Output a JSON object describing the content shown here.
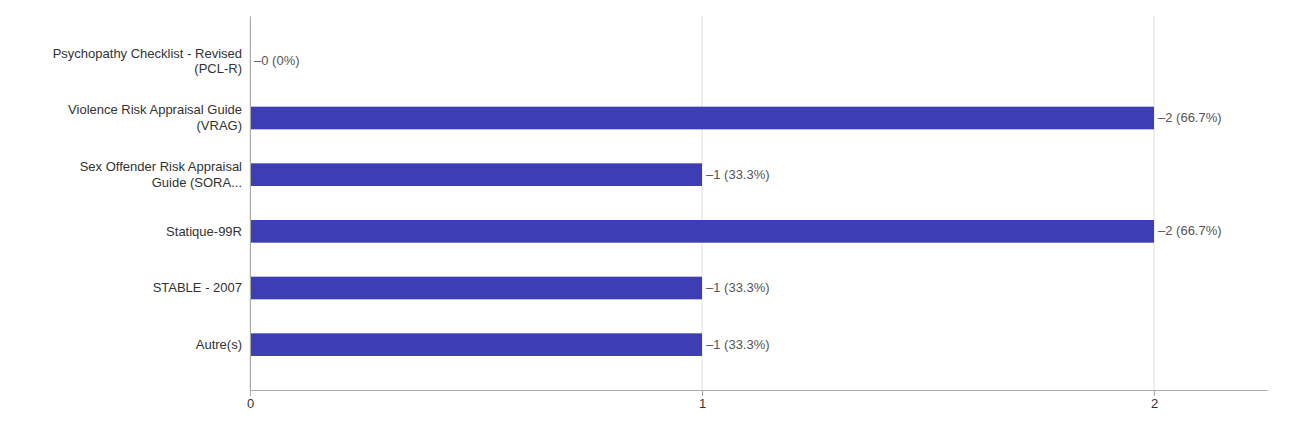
{
  "chart_data": {
    "type": "bar",
    "orientation": "horizontal",
    "categories": [
      "Autre(s)",
      "STABLE - 2007",
      "Statique-99R",
      "Sex Offender Risk Appraisal\nGuide (SORA...",
      "Violence Risk Appraisal Guide\n(VRAG)",
      "Psychopathy Checklist - Revised\n(PCL-R)"
    ],
    "values": [
      1,
      1,
      2,
      1,
      2,
      0
    ],
    "value_labels": [
      "–1 (33.3%)",
      "–1 (33.3%)",
      "–2 (66.7%)",
      "–1 (33.3%)",
      "–2 (66.7%)",
      "–0 (0%)"
    ],
    "color": "#3d3db5",
    "xlim": [
      0,
      2.25
    ],
    "xticks": [
      0,
      1,
      2
    ],
    "grid": true,
    "data_labels": true
  }
}
